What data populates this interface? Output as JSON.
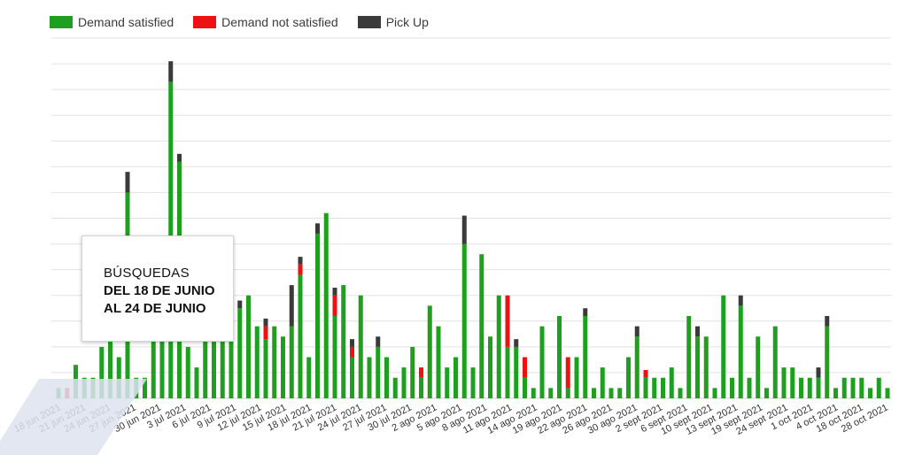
{
  "chart_data": {
    "type": "bar",
    "stacked": true,
    "legend_position": "top-left",
    "grid": true,
    "ylim": [
      0,
      14
    ],
    "series": [
      {
        "name": "Demand satisfied",
        "color": "#1f9f1f"
      },
      {
        "name": "Demand not satisfied",
        "color": "#ee1111"
      },
      {
        "name": "Pick Up",
        "color": "#3a3a3a"
      }
    ],
    "x_tick_labels": [
      "18 jun 2021",
      "21 jun 2021",
      "24 jun 2021",
      "27 jun 2021",
      "30 jun 2021",
      "3 jul 2021",
      "6 jul 2021",
      "9 jul 2021",
      "12 jul 2021",
      "15 jul 2021",
      "18 jul 2021",
      "21 jul 2021",
      "24 jul 2021",
      "27 jul 2021",
      "30 jul 2021",
      "2 ago 2021",
      "5 ago 2021",
      "8 ago 2021",
      "11 ago 2021",
      "14 ago 2021",
      "19 ago 2021",
      "22 ago 2021",
      "26 ago 2021",
      "30 ago 2021",
      "2 sept 2021",
      "6 sept 2021",
      "10 sept 2021",
      "13 sept 2021",
      "19 sept 2021",
      "24 sept 2021",
      "1 oct 2021",
      "4 oct 2021",
      "18 oct 2021",
      "28 oct 2021"
    ],
    "bars": [
      [
        0.4,
        0,
        0
      ],
      [
        0,
        0.4,
        0
      ],
      [
        1.3,
        0,
        0
      ],
      [
        0.8,
        0,
        0
      ],
      [
        0.8,
        0,
        0
      ],
      [
        2,
        0,
        0
      ],
      [
        2.5,
        0,
        0
      ],
      [
        1.6,
        0,
        0
      ],
      [
        8,
        0,
        0.8
      ],
      [
        0.8,
        0,
        0
      ],
      [
        0.8,
        0,
        0
      ],
      [
        3,
        0,
        0
      ],
      [
        6,
        0,
        0.2
      ],
      [
        12.3,
        0,
        0.8
      ],
      [
        9.2,
        0,
        0.3
      ],
      [
        2,
        0,
        0
      ],
      [
        1.2,
        0,
        0
      ],
      [
        3,
        0,
        0
      ],
      [
        3.5,
        0,
        0.2
      ],
      [
        2.8,
        0,
        0
      ],
      [
        3,
        0,
        0
      ],
      [
        3.5,
        0,
        0.3
      ],
      [
        4,
        0,
        0
      ],
      [
        2.8,
        0,
        0
      ],
      [
        2.3,
        0.5,
        0.3
      ],
      [
        2.8,
        0,
        0
      ],
      [
        2.4,
        0,
        0
      ],
      [
        2.8,
        0,
        1.6
      ],
      [
        4.8,
        0.4,
        0.3
      ],
      [
        1.6,
        0,
        0
      ],
      [
        6.4,
        0,
        0.4
      ],
      [
        7.2,
        0,
        0
      ],
      [
        3.2,
        0.8,
        0.3
      ],
      [
        4.4,
        0,
        0
      ],
      [
        1.6,
        0.4,
        0.3
      ],
      [
        4,
        0,
        0
      ],
      [
        1.6,
        0,
        0
      ],
      [
        2,
        0,
        0.4
      ],
      [
        1.6,
        0,
        0
      ],
      [
        0.8,
        0,
        0
      ],
      [
        1.2,
        0,
        0
      ],
      [
        2,
        0,
        0
      ],
      [
        0.8,
        0.4,
        0
      ],
      [
        3.6,
        0,
        0
      ],
      [
        2.8,
        0,
        0
      ],
      [
        1.2,
        0,
        0
      ],
      [
        1.6,
        0,
        0
      ],
      [
        6,
        0,
        1.1
      ],
      [
        1.2,
        0,
        0
      ],
      [
        5.6,
        0,
        0
      ],
      [
        2.4,
        0,
        0
      ],
      [
        4,
        0,
        0
      ],
      [
        2,
        2,
        0
      ],
      [
        2,
        0,
        0.3
      ],
      [
        0.8,
        0.8,
        0
      ],
      [
        0.4,
        0,
        0
      ],
      [
        2.8,
        0,
        0
      ],
      [
        0.4,
        0,
        0
      ],
      [
        3.2,
        0,
        0
      ],
      [
        0.4,
        1.2,
        0
      ],
      [
        1.6,
        0,
        0
      ],
      [
        3.2,
        0,
        0.3
      ],
      [
        0.4,
        0,
        0
      ],
      [
        1.2,
        0,
        0
      ],
      [
        0.4,
        0,
        0
      ],
      [
        0.4,
        0,
        0
      ],
      [
        1.6,
        0,
        0
      ],
      [
        2.4,
        0,
        0.4
      ],
      [
        0.8,
        0.3,
        0
      ],
      [
        0.8,
        0,
        0
      ],
      [
        0.8,
        0,
        0
      ],
      [
        1.2,
        0,
        0
      ],
      [
        0.4,
        0,
        0
      ],
      [
        3.2,
        0,
        0
      ],
      [
        2.4,
        0,
        0.4
      ],
      [
        2.4,
        0,
        0
      ],
      [
        0.4,
        0,
        0
      ],
      [
        4,
        0,
        0
      ],
      [
        0.8,
        0,
        0
      ],
      [
        3.6,
        0,
        0.4
      ],
      [
        0.8,
        0,
        0
      ],
      [
        2.4,
        0,
        0
      ],
      [
        0.4,
        0,
        0
      ],
      [
        2.8,
        0,
        0
      ],
      [
        1.2,
        0,
        0
      ],
      [
        1.2,
        0,
        0
      ],
      [
        0.8,
        0,
        0
      ],
      [
        0.8,
        0,
        0
      ],
      [
        0.8,
        0,
        0.4
      ],
      [
        2.8,
        0,
        0.4
      ],
      [
        0.4,
        0,
        0
      ],
      [
        0.8,
        0,
        0
      ],
      [
        0.8,
        0,
        0
      ],
      [
        0.8,
        0,
        0
      ],
      [
        0.4,
        0,
        0
      ],
      [
        0.8,
        0,
        0
      ],
      [
        0.4,
        0,
        0
      ]
    ],
    "annotation": {
      "line1": "BÚSQUEDAS",
      "line2": "DEL 18 DE JUNIO",
      "line3": "AL 24 DE JUNIO"
    }
  }
}
